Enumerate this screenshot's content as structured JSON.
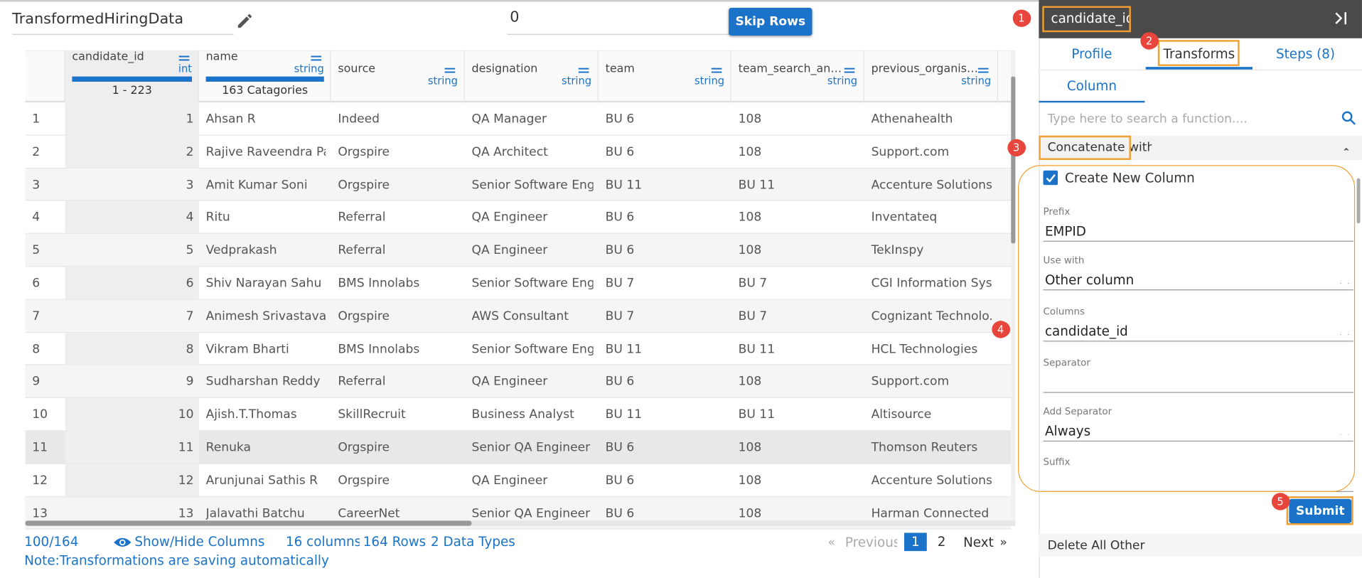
{
  "header": {
    "dataset_name": "TransformedHiringData",
    "skip_rows": {
      "value": "0",
      "button": "Skip Rows"
    }
  },
  "table": {
    "columns": [
      {
        "name": "candidate_id",
        "type": "int",
        "summary": "1 - 223"
      },
      {
        "name": "name",
        "type": "string",
        "summary": "163 Catagories"
      },
      {
        "name": "source",
        "type": "string"
      },
      {
        "name": "designation",
        "type": "string"
      },
      {
        "name": "team",
        "type": "string"
      },
      {
        "name": "team_search_and_r...",
        "type": "string"
      },
      {
        "name": "previous_organisati...",
        "type": "string"
      }
    ],
    "rows": [
      [
        1,
        1,
        "Ahsan R",
        "Indeed",
        "QA Manager",
        "BU 6",
        "108",
        "Athenahealth"
      ],
      [
        2,
        2,
        "Rajive Raveendra Pai",
        "Orgspire",
        "QA Architect",
        "BU 6",
        "108",
        "Support.com"
      ],
      [
        3,
        3,
        "Amit Kumar Soni",
        "Orgspire",
        "Senior Software Eng...",
        "BU 11",
        "BU 11",
        "Accenture Solutions..."
      ],
      [
        4,
        4,
        "Ritu",
        "Referral",
        "QA Engineer",
        "BU 6",
        "108",
        "Inventateq"
      ],
      [
        5,
        5,
        "Vedprakash",
        "Referral",
        "QA Engineer",
        "BU 6",
        "108",
        "TekInspy"
      ],
      [
        6,
        6,
        "Shiv Narayan Sahu",
        "BMS Innolabs",
        "Senior Software Eng...",
        "BU 7",
        "BU 7",
        "CGI Information Sys..."
      ],
      [
        7,
        7,
        "Animesh Srivastava",
        "Orgspire",
        "AWS Consultant",
        "BU 7",
        "BU 7",
        "Cognizant Technolo..."
      ],
      [
        8,
        8,
        "Vikram Bharti",
        "BMS Innolabs",
        "Senior Software Eng...",
        "BU 11",
        "BU 11",
        "HCL Technologies"
      ],
      [
        9,
        9,
        "Sudharshan Reddy",
        "Referral",
        "QA Engineer",
        "BU 6",
        "108",
        "Support.com"
      ],
      [
        10,
        10,
        "Ajish.T.Thomas",
        "SkillRecruit",
        "Business Analyst",
        "BU 11",
        "BU 11",
        "Altisource"
      ],
      [
        11,
        11,
        "Renuka",
        "Orgspire",
        "Senior QA Engineer",
        "BU 6",
        "108",
        "Thomson Reuters"
      ],
      [
        12,
        12,
        "Arunjunai Sathis R",
        "Orgspire",
        "QA Engineer",
        "BU 6",
        "108",
        "Accenture Solutions..."
      ],
      [
        13,
        13,
        "Jalavathi Batchu",
        "CareerNet",
        "Senior QA Engineer",
        "BU 6",
        "108",
        "Harman Connected ..."
      ]
    ]
  },
  "footer": {
    "row_count": "100/164",
    "show_hide": "Show/Hide Columns",
    "columns": "16 columns",
    "rows": "164 Rows",
    "data_types": "2 Data Types",
    "note": "Note:Transformations are saving automatically"
  },
  "pagination": {
    "first": "«",
    "previous": "Previous",
    "pages": [
      "1",
      "2"
    ],
    "next": "Next",
    "last": "»"
  },
  "panel": {
    "column_name": "candidate_id",
    "tabs": [
      "Profile",
      "Transforms",
      "Steps (8)"
    ],
    "subtab": "Column",
    "search_placeholder": "Type here to search a function....",
    "transform": "Concatenate with...",
    "form": {
      "create_new_column": "Create New Column",
      "fields": [
        {
          "label": "Prefix",
          "value": "EMPID"
        },
        {
          "label": "Use with",
          "value": "Other column"
        },
        {
          "label": "Columns",
          "value": "candidate_id"
        },
        {
          "label": "Separator"
        },
        {
          "label": "Add Separator",
          "value": "Always"
        },
        {
          "label": "Suffix"
        }
      ]
    },
    "submit": "Submit",
    "next_transform": "Delete All Other"
  },
  "callouts": [
    "1",
    "2",
    "3",
    "4",
    "5"
  ]
}
